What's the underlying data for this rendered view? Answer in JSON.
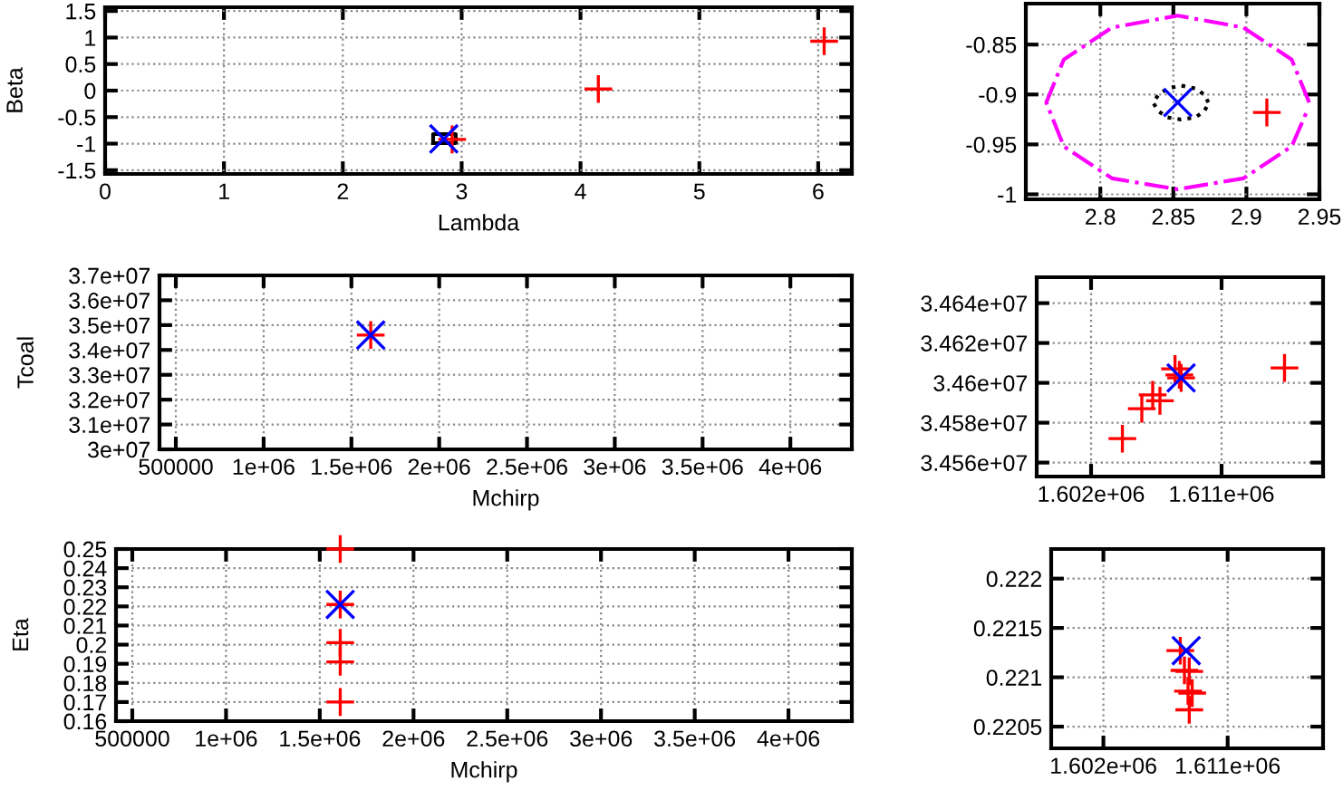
{
  "chart_data": [
    {
      "type": "scatter",
      "xlabel": "Lambda",
      "ylabel": "Beta",
      "xlim": [
        0,
        6.283
      ],
      "ylim": [
        -1.571,
        1.571
      ],
      "xticks": [
        0,
        1,
        2,
        3,
        4,
        5,
        6
      ],
      "yticks": [
        -1.5,
        -1,
        -0.5,
        0,
        0.5,
        1,
        1.5
      ],
      "grid": true,
      "series": [
        {
          "type": "line",
          "color": "#000000",
          "line_style": "solid",
          "marker": "none",
          "x": [
            2.76,
            2.95,
            2.95,
            2.76,
            2.76
          ],
          "values": [
            -0.99,
            -0.99,
            -0.82,
            -0.82,
            -0.985
          ]
        },
        {
          "color": "#ff0000",
          "marker": "cross",
          "x": [
            6.05,
            4.15,
            2.92
          ],
          "values": [
            0.93,
            0.03,
            -0.92
          ]
        },
        {
          "color": "#0000ff",
          "marker": "x",
          "x": [
            2.85
          ],
          "values": [
            -0.91
          ]
        }
      ]
    },
    {
      "type": "scatter",
      "xlim": [
        2.749,
        2.95
      ],
      "ylim": [
        -1.005,
        -0.809
      ],
      "xticks": [
        2.8,
        2.85,
        2.9,
        2.95
      ],
      "yticks": [
        -1,
        -0.95,
        -0.9,
        -0.85
      ],
      "grid": true,
      "series": [
        {
          "type": "line",
          "color": "#ff00ff",
          "line_style": "dashdot",
          "marker": "none",
          "x": [
            2.943,
            2.931,
            2.898,
            2.853,
            2.808,
            2.775,
            2.763,
            2.775,
            2.808,
            2.853,
            2.898,
            2.931,
            2.942
          ],
          "values": [
            -0.908,
            -0.865,
            -0.833,
            -0.821,
            -0.833,
            -0.865,
            -0.908,
            -0.952,
            -0.984,
            -0.995,
            -0.984,
            -0.952,
            -0.915
          ]
        },
        {
          "type": "line",
          "color": "#000000",
          "line_style": "dotted",
          "marker": "none",
          "x": [
            2.874,
            2.871,
            2.865,
            2.855,
            2.846,
            2.84,
            2.836,
            2.84,
            2.846,
            2.855,
            2.865,
            2.871,
            2.873
          ],
          "values": [
            -0.908,
            -0.9,
            -0.894,
            -0.891,
            -0.894,
            -0.9,
            -0.908,
            -0.917,
            -0.923,
            -0.925,
            -0.923,
            -0.917,
            -0.912
          ]
        },
        {
          "color": "#ff0000",
          "marker": "cross",
          "x": [
            2.914
          ],
          "values": [
            -0.918
          ]
        },
        {
          "color": "#0000ff",
          "marker": "x",
          "x": [
            2.853
          ],
          "values": [
            -0.908
          ]
        }
      ]
    },
    {
      "type": "scatter",
      "xlabel": "Mchirp",
      "ylabel": "Tcoal",
      "xlim": [
        407000,
        4350000
      ],
      "ylim": [
        30000000,
        37000000
      ],
      "xticks": [
        500000,
        {
          "value": 1000000,
          "label": "1e+06"
        },
        {
          "value": 1500000,
          "label": "1.5e+06"
        },
        {
          "value": 2000000,
          "label": "2e+06"
        },
        {
          "value": 2500000,
          "label": "2.5e+06"
        },
        {
          "value": 3000000,
          "label": "3e+06"
        },
        {
          "value": 3500000,
          "label": "3.5e+06"
        },
        {
          "value": 4000000,
          "label": "4e+06"
        }
      ],
      "yticks": [
        {
          "value": 30000000,
          "label": "3e+07"
        },
        {
          "value": 31000000,
          "label": "3.1e+07"
        },
        {
          "value": 32000000,
          "label": "3.2e+07"
        },
        {
          "value": 33000000,
          "label": "3.3e+07"
        },
        {
          "value": 34000000,
          "label": "3.4e+07"
        },
        {
          "value": 35000000,
          "label": "3.5e+07"
        },
        {
          "value": 36000000,
          "label": "3.6e+07"
        },
        {
          "value": 37000000,
          "label": "3.7e+07"
        }
      ],
      "grid": true,
      "series": [
        {
          "color": "#ff0000",
          "marker": "cross",
          "x": [
            1610000
          ],
          "values": [
            34600000
          ]
        },
        {
          "color": "#0000ff",
          "marker": "x",
          "x": [
            1610000
          ],
          "values": [
            34600000
          ]
        }
      ]
    },
    {
      "type": "scatter",
      "xlim": [
        1598250,
        1618000
      ],
      "ylim": [
        34553000,
        34653000
      ],
      "xticks": [
        {
          "value": 1602000,
          "label": "1.602e+06"
        },
        {
          "value": 1611000,
          "label": "1.611e+06"
        }
      ],
      "yticks": [
        {
          "value": 34560000,
          "label": "3.456e+07"
        },
        {
          "value": 34580000,
          "label": "3.458e+07"
        },
        {
          "value": 34600000,
          "label": "3.46e+07"
        },
        {
          "value": 34620000,
          "label": "3.462e+07"
        },
        {
          "value": 34640000,
          "label": "3.464e+07"
        }
      ],
      "grid": true,
      "series": [
        {
          "color": "#ff0000",
          "marker": "cross",
          "x": [
            1604160,
            1605500,
            1606250,
            1606750,
            1607790,
            1608090,
            1608210,
            1615340
          ],
          "values": [
            34572000,
            34587000,
            34594000,
            34591000,
            34607000,
            34604000,
            34602500,
            34607500
          ]
        },
        {
          "color": "#0000ff",
          "marker": "x",
          "x": [
            1608210
          ],
          "values": [
            34602500
          ]
        }
      ]
    },
    {
      "type": "scatter",
      "xlabel": "Mchirp",
      "ylabel": "Eta",
      "xlim": [
        413000,
        4338000
      ],
      "ylim": [
        0.16,
        0.25
      ],
      "xticks": [
        500000,
        {
          "value": 1000000,
          "label": "1e+06"
        },
        {
          "value": 1500000,
          "label": "1.5e+06"
        },
        {
          "value": 2000000,
          "label": "2e+06"
        },
        {
          "value": 2500000,
          "label": "2.5e+06"
        },
        {
          "value": 3000000,
          "label": "3e+06"
        },
        {
          "value": 3500000,
          "label": "3.5e+06"
        },
        {
          "value": 4000000,
          "label": "4e+06"
        }
      ],
      "yticks": [
        0.16,
        0.17,
        0.18,
        0.19,
        0.2,
        0.21,
        0.22,
        0.23,
        0.24,
        0.25
      ],
      "grid": true,
      "series": [
        {
          "color": "#ff0000",
          "marker": "cross",
          "x": [
            1609000,
            1609000,
            1609000,
            1609000,
            1609000
          ],
          "values": [
            0.25,
            0.221,
            0.201,
            0.191,
            0.17
          ]
        },
        {
          "color": "#0000ff",
          "marker": "x",
          "x": [
            1609000
          ],
          "values": [
            0.221
          ]
        }
      ]
    },
    {
      "type": "scatter",
      "xlim": [
        1598220,
        1617910
      ],
      "ylim": [
        0.22028,
        0.2223
      ],
      "xticks": [
        {
          "value": 1602000,
          "label": "1.602e+06"
        },
        {
          "value": 1611000,
          "label": "1.611e+06"
        }
      ],
      "yticks": [
        0.2205,
        0.221,
        0.2215,
        0.222
      ],
      "grid": true,
      "series": [
        {
          "color": "#ff0000",
          "marker": "cross",
          "x": [
            1607570,
            1607870,
            1608220,
            1608130,
            1608430,
            1608220
          ],
          "values": [
            0.22127,
            0.22107,
            0.22106,
            0.22086,
            0.22084,
            0.22067
          ]
        },
        {
          "color": "#0000ff",
          "marker": "x",
          "x": [
            1608000
          ],
          "values": [
            0.22127
          ]
        }
      ]
    }
  ]
}
